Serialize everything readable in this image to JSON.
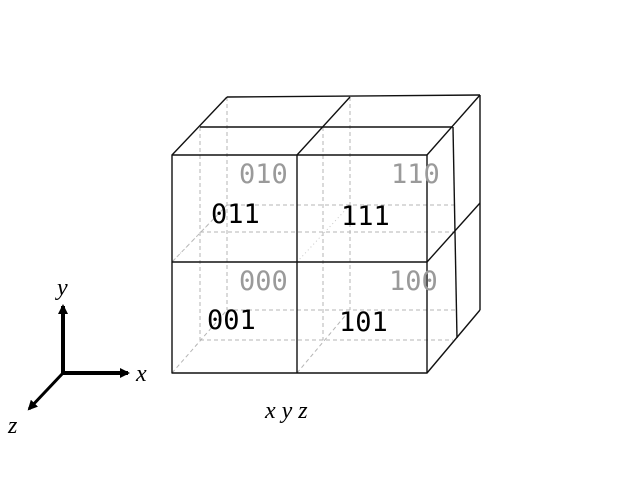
{
  "axes": {
    "x": "x",
    "y": "y",
    "z": "z"
  },
  "caption": "x y z",
  "colors": {
    "front": "#000000",
    "back": "#9a9a9a",
    "edge": "#111111",
    "hidden": "#b5b5b5"
  },
  "cells": {
    "back_top_left": "010",
    "back_top_right": "110",
    "back_bottom_left": "000",
    "back_bottom_right": "100",
    "front_top_left": "011",
    "front_top_right": "111",
    "front_bottom_left": "001",
    "front_bottom_right": "101"
  }
}
